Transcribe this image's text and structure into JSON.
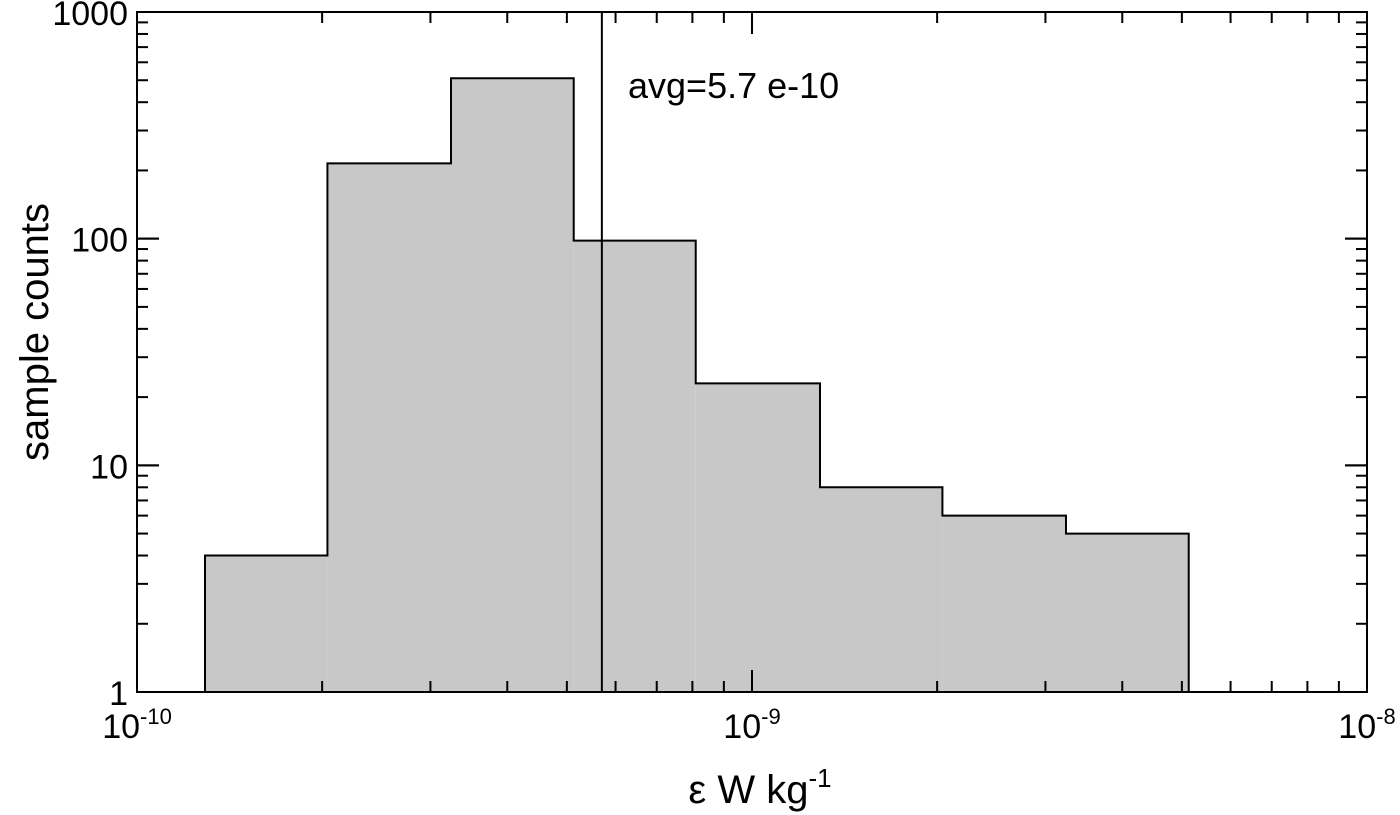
{
  "chart_data": {
    "type": "bar",
    "subtype": "histogram",
    "title": "",
    "xlabel": "ε W kg",
    "xlabel_superscript": "-1",
    "ylabel": "sample counts",
    "x_scale": "log",
    "y_scale": "log",
    "xlim": [
      1e-10,
      1e-08
    ],
    "ylim": [
      1,
      1000
    ],
    "x_ticks": [
      {
        "value": 1e-10,
        "base": "10",
        "exp": "-10"
      },
      {
        "value": 1e-09,
        "base": "10",
        "exp": "-9"
      },
      {
        "value": 1e-08,
        "base": "10",
        "exp": "-8"
      }
    ],
    "y_ticks": [
      {
        "value": 1,
        "label": "1"
      },
      {
        "value": 10,
        "label": "10"
      },
      {
        "value": 100,
        "label": "100"
      },
      {
        "value": 1000,
        "label": "1000"
      }
    ],
    "bin_edges": [
      1.29e-10,
      2.04e-10,
      3.24e-10,
      5.13e-10,
      8.1e-10,
      1.29e-09,
      2.04e-09,
      3.24e-09,
      5.13e-09
    ],
    "counts": [
      4,
      215,
      510,
      98,
      23,
      8,
      6,
      5
    ],
    "fill_color": "#c8c8c8",
    "edge_color": "#000000",
    "grid": false,
    "legend": "none",
    "annotations": [
      {
        "type": "vline",
        "x": 5.7e-10,
        "text": "avg=5.7 e-10"
      }
    ]
  }
}
